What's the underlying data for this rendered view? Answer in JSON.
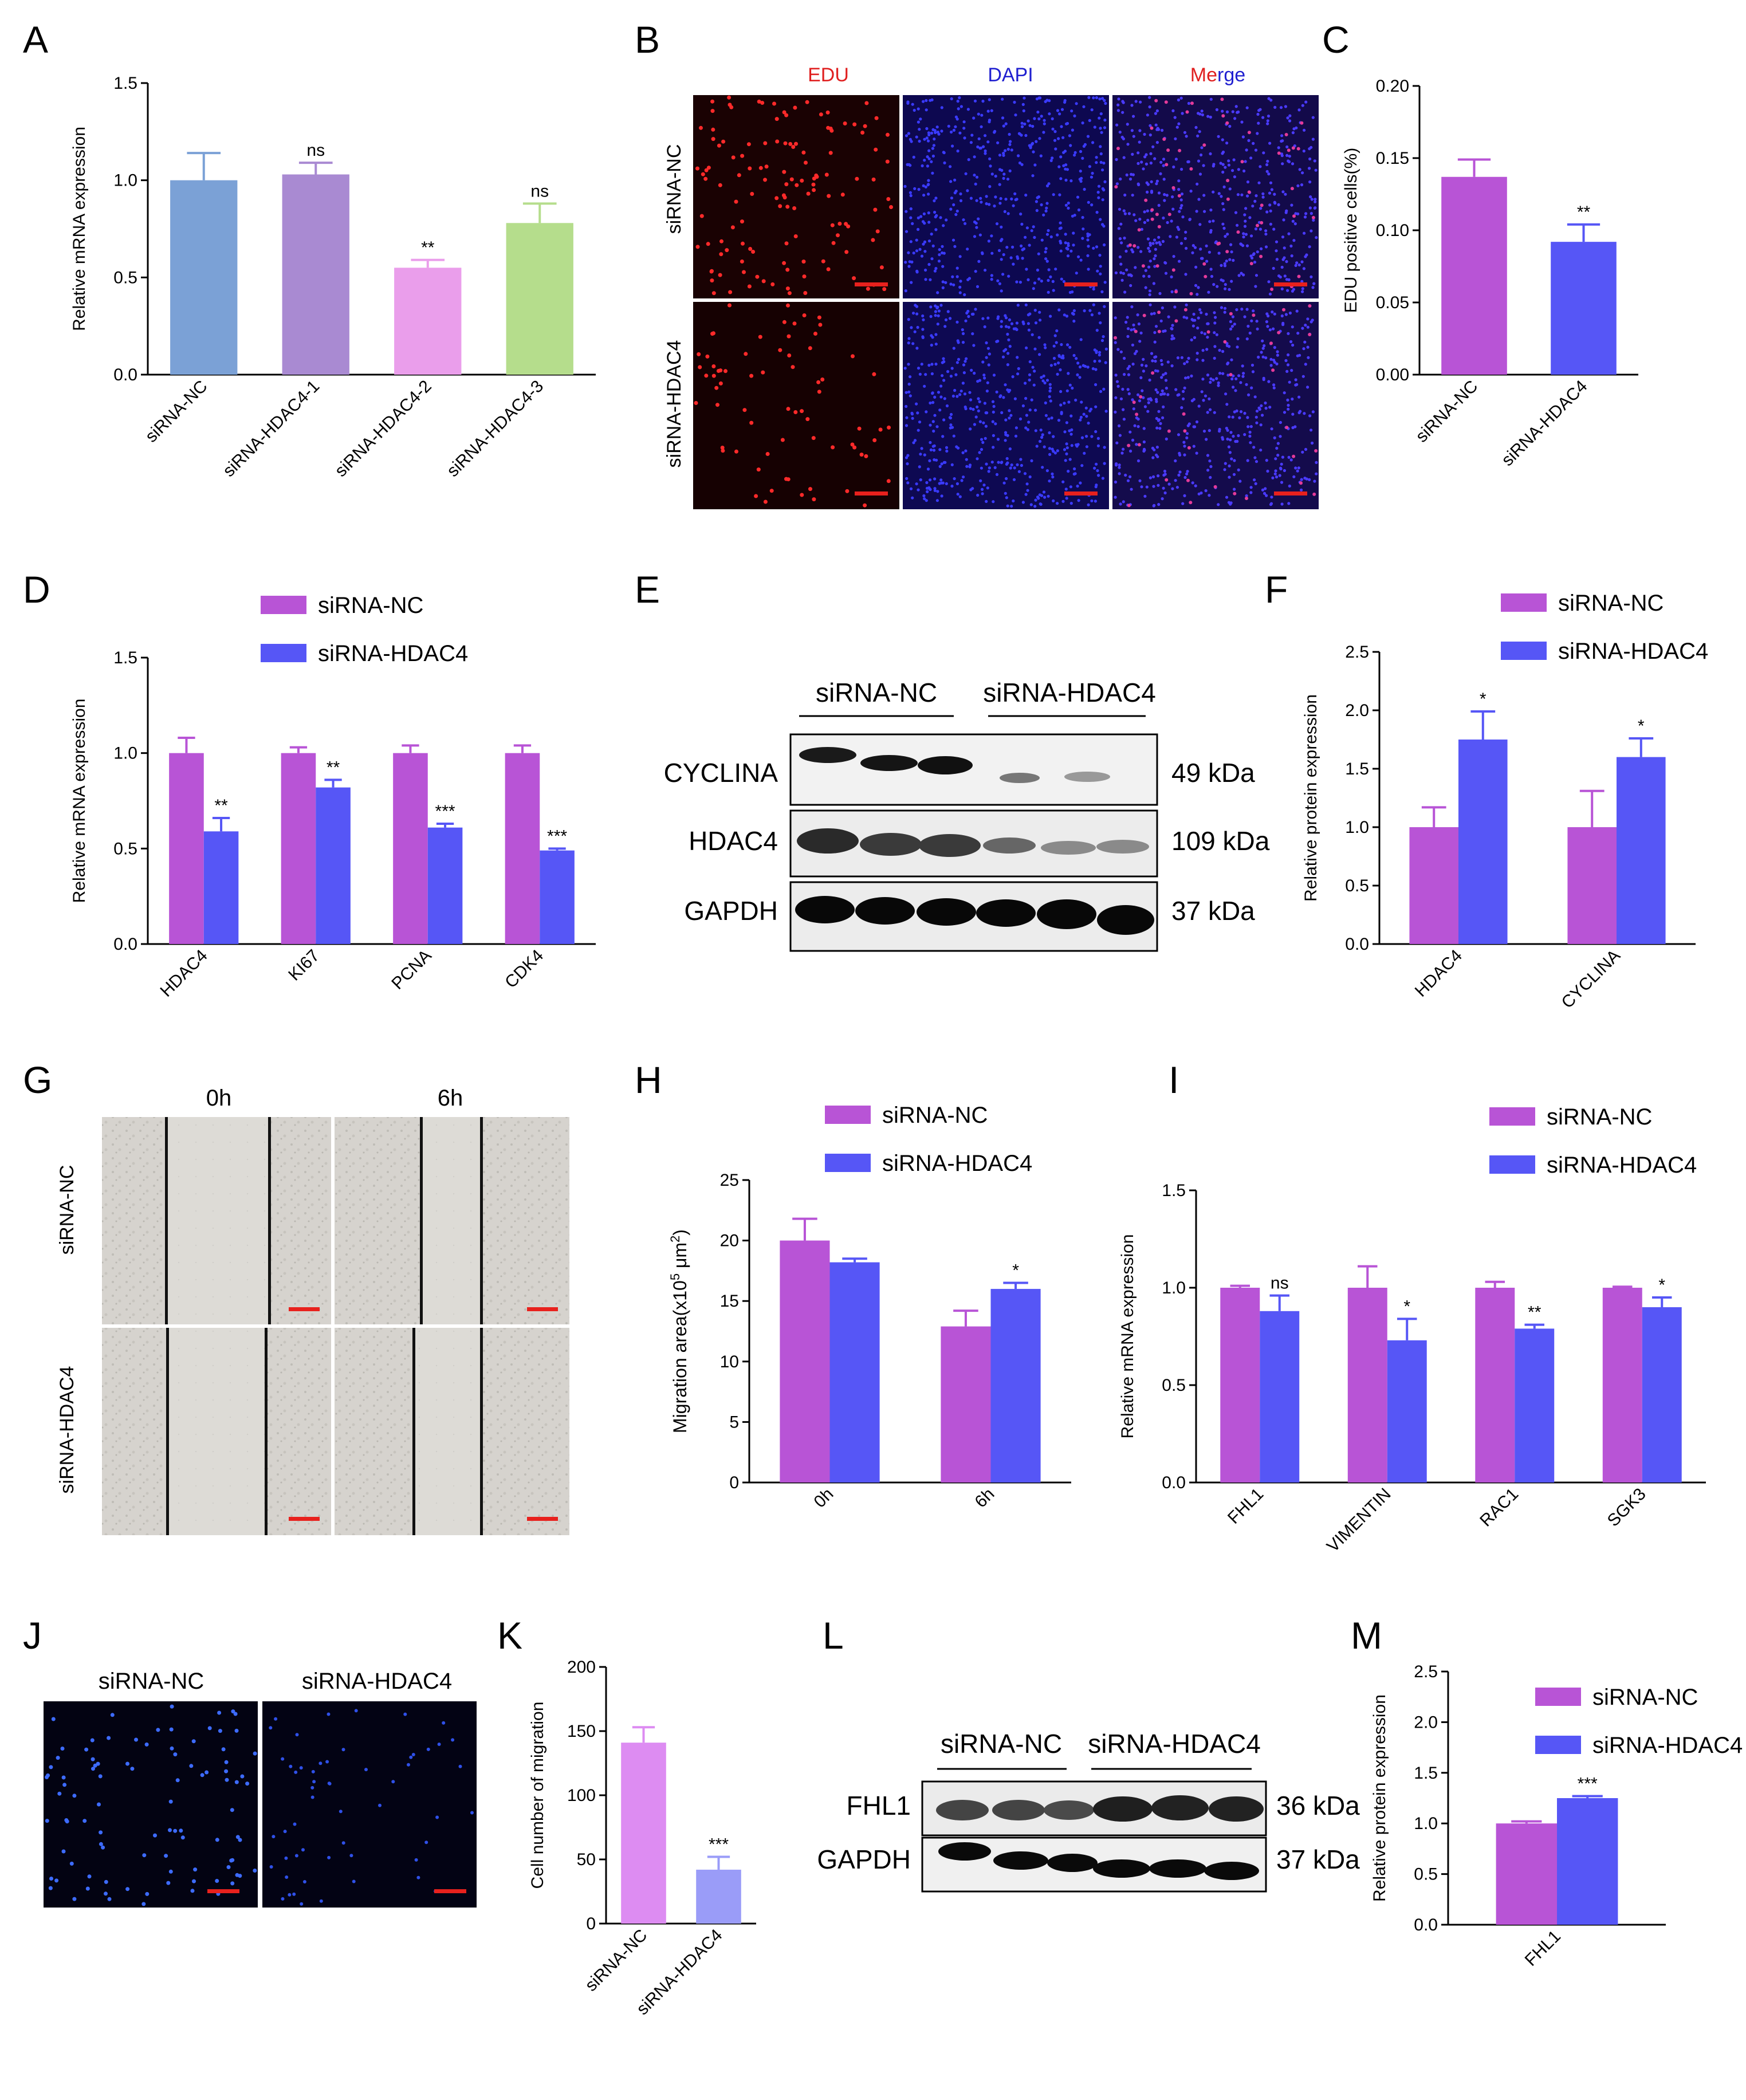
{
  "colors": {
    "nc": "#b854d6",
    "hdac4": "#5656f6",
    "a_nc": "#7ba1d6",
    "a_1": "#a98ad2",
    "a_2": "#ea9eeb",
    "a_3": "#b5dd8c",
    "k_nc": "#dd8cf2",
    "k_hdac4": "#9a9cf8",
    "scale_bar": "#e8211d"
  },
  "panel_labels": [
    "A",
    "B",
    "C",
    "D",
    "E",
    "F",
    "G",
    "H",
    "I",
    "J",
    "K",
    "L",
    "M"
  ],
  "legend": {
    "nc": "siRNA-NC",
    "hdac4": "siRNA-HDAC4"
  },
  "chart_data": [
    {
      "id": "A",
      "type": "bar",
      "ylabel": "Relative mRNA expression",
      "ylim": [
        0,
        1.5
      ],
      "yticks": [
        "0.0",
        "0.5",
        "1.0",
        "1.5"
      ],
      "categories": [
        "siRNA-NC",
        "siRNA-HDAC4-1",
        "siRNA-HDAC4-2",
        "siRNA-HDAC4-3"
      ],
      "values": [
        1.0,
        1.03,
        0.55,
        0.78
      ],
      "errors": [
        0.14,
        0.06,
        0.04,
        0.1
      ],
      "significance": [
        "",
        "ns",
        "**",
        "ns"
      ]
    },
    {
      "id": "C",
      "type": "bar",
      "ylabel": "EDU positive cells(%)",
      "ylim": [
        0,
        0.2
      ],
      "yticks": [
        "0.00",
        "0.05",
        "0.10",
        "0.15",
        "0.20"
      ],
      "categories": [
        "siRNA-NC",
        "siRNA-HDAC4"
      ],
      "values": [
        0.137,
        0.092
      ],
      "errors": [
        0.012,
        0.012
      ],
      "significance": [
        "",
        "**"
      ]
    },
    {
      "id": "D",
      "type": "bar",
      "ylabel": "Relative mRNA expression",
      "ylim": [
        0,
        1.5
      ],
      "yticks": [
        "0.0",
        "0.5",
        "1.0",
        "1.5"
      ],
      "categories": [
        "HDAC4",
        "KI67",
        "PCNA",
        "CDK4"
      ],
      "series": [
        {
          "name": "siRNA-NC",
          "values": [
            1.0,
            1.0,
            1.0,
            1.0
          ],
          "errors": [
            0.08,
            0.03,
            0.04,
            0.04
          ]
        },
        {
          "name": "siRNA-HDAC4",
          "values": [
            0.59,
            0.82,
            0.61,
            0.49
          ],
          "errors": [
            0.07,
            0.04,
            0.02,
            0.01
          ],
          "significance": [
            "**",
            "**",
            "***",
            "***"
          ]
        }
      ]
    },
    {
      "id": "F",
      "type": "bar",
      "ylabel": "Relative protein expression",
      "ylim": [
        0,
        2.5
      ],
      "yticks": [
        "0.0",
        "0.5",
        "1.0",
        "1.5",
        "2.0",
        "2.5"
      ],
      "categories": [
        "HDAC4",
        "CYCLINA"
      ],
      "series": [
        {
          "name": "siRNA-NC",
          "values": [
            1.0,
            1.0
          ],
          "errors": [
            0.17,
            0.31
          ]
        },
        {
          "name": "siRNA-HDAC4",
          "values": [
            1.75,
            1.6
          ],
          "errors": [
            0.24,
            0.16
          ],
          "significance": [
            "*",
            "*"
          ]
        }
      ]
    },
    {
      "id": "H",
      "type": "bar",
      "ylabel_pre": "Migration area(x10",
      "ylabel_sup": "5",
      "ylabel_post": " μm",
      "ylabel_sup2": "2",
      "ylabel_end": ")",
      "ylim": [
        0,
        25
      ],
      "yticks": [
        "0",
        "5",
        "10",
        "15",
        "20",
        "25"
      ],
      "categories": [
        "0h",
        "6h"
      ],
      "series": [
        {
          "name": "siRNA-NC",
          "values": [
            20.0,
            12.9
          ],
          "errors": [
            1.8,
            1.3
          ]
        },
        {
          "name": "siRNA-HDAC4",
          "values": [
            18.2,
            16.0
          ],
          "errors": [
            0.3,
            0.5
          ],
          "significance": [
            "",
            "*"
          ]
        }
      ]
    },
    {
      "id": "I",
      "type": "bar",
      "ylabel": "Relative mRNA expression",
      "ylim": [
        0,
        1.5
      ],
      "yticks": [
        "0.0",
        "0.5",
        "1.0",
        "1.5"
      ],
      "categories": [
        "FHL1",
        "VIMENTIN",
        "RAC1",
        "SGK3"
      ],
      "series": [
        {
          "name": "siRNA-NC",
          "values": [
            1.0,
            1.0,
            1.0,
            1.0
          ],
          "errors": [
            0.01,
            0.11,
            0.03,
            0.005
          ]
        },
        {
          "name": "siRNA-HDAC4",
          "values": [
            0.88,
            0.73,
            0.79,
            0.9
          ],
          "errors": [
            0.08,
            0.11,
            0.02,
            0.05
          ],
          "significance": [
            "ns",
            "*",
            "**",
            "*"
          ]
        }
      ]
    },
    {
      "id": "K",
      "type": "bar",
      "ylabel": "Cell number of migration",
      "ylim": [
        0,
        200
      ],
      "yticks": [
        "0",
        "50",
        "100",
        "150",
        "200"
      ],
      "categories": [
        "siRNA-NC",
        "siRNA-HDAC4"
      ],
      "values": [
        141,
        42
      ],
      "errors": [
        12,
        10
      ],
      "significance": [
        "",
        "***"
      ]
    },
    {
      "id": "M",
      "type": "bar",
      "ylabel": "Relative protein expression",
      "ylim": [
        0,
        2.5
      ],
      "yticks": [
        "0.0",
        "0.5",
        "1.0",
        "1.5",
        "2.0",
        "2.5"
      ],
      "categories": [
        "FHL1"
      ],
      "series": [
        {
          "name": "siRNA-NC",
          "values": [
            1.0
          ],
          "errors": [
            0.02
          ]
        },
        {
          "name": "siRNA-HDAC4",
          "values": [
            1.25
          ],
          "errors": [
            0.02
          ],
          "significance": [
            "***"
          ]
        }
      ]
    }
  ],
  "panel_b": {
    "cols": [
      "EDU",
      "DAPI",
      "Merge"
    ],
    "merge_parts": [
      "Me",
      "r",
      "ge"
    ],
    "rows": [
      "siRNA-NC",
      "siRNA-HDAC4"
    ]
  },
  "panel_e": {
    "groups": [
      "siRNA-NC",
      "siRNA-HDAC4"
    ],
    "bands": [
      {
        "name": "CYCLINA",
        "kda": "49 kDa"
      },
      {
        "name": "HDAC4",
        "kda": "109 kDa"
      },
      {
        "name": "GAPDH",
        "kda": "37 kDa"
      }
    ]
  },
  "panel_g": {
    "cols": [
      "0h",
      "6h"
    ],
    "rows": [
      "siRNA-NC",
      "siRNA-HDAC4"
    ]
  },
  "panel_j": {
    "cols": [
      "siRNA-NC",
      "siRNA-HDAC4"
    ]
  },
  "panel_l": {
    "groups": [
      "siRNA-NC",
      "siRNA-HDAC4"
    ],
    "bands": [
      {
        "name": "FHL1",
        "kda": "36 kDa"
      },
      {
        "name": "GAPDH",
        "kda": "37 kDa"
      }
    ]
  }
}
